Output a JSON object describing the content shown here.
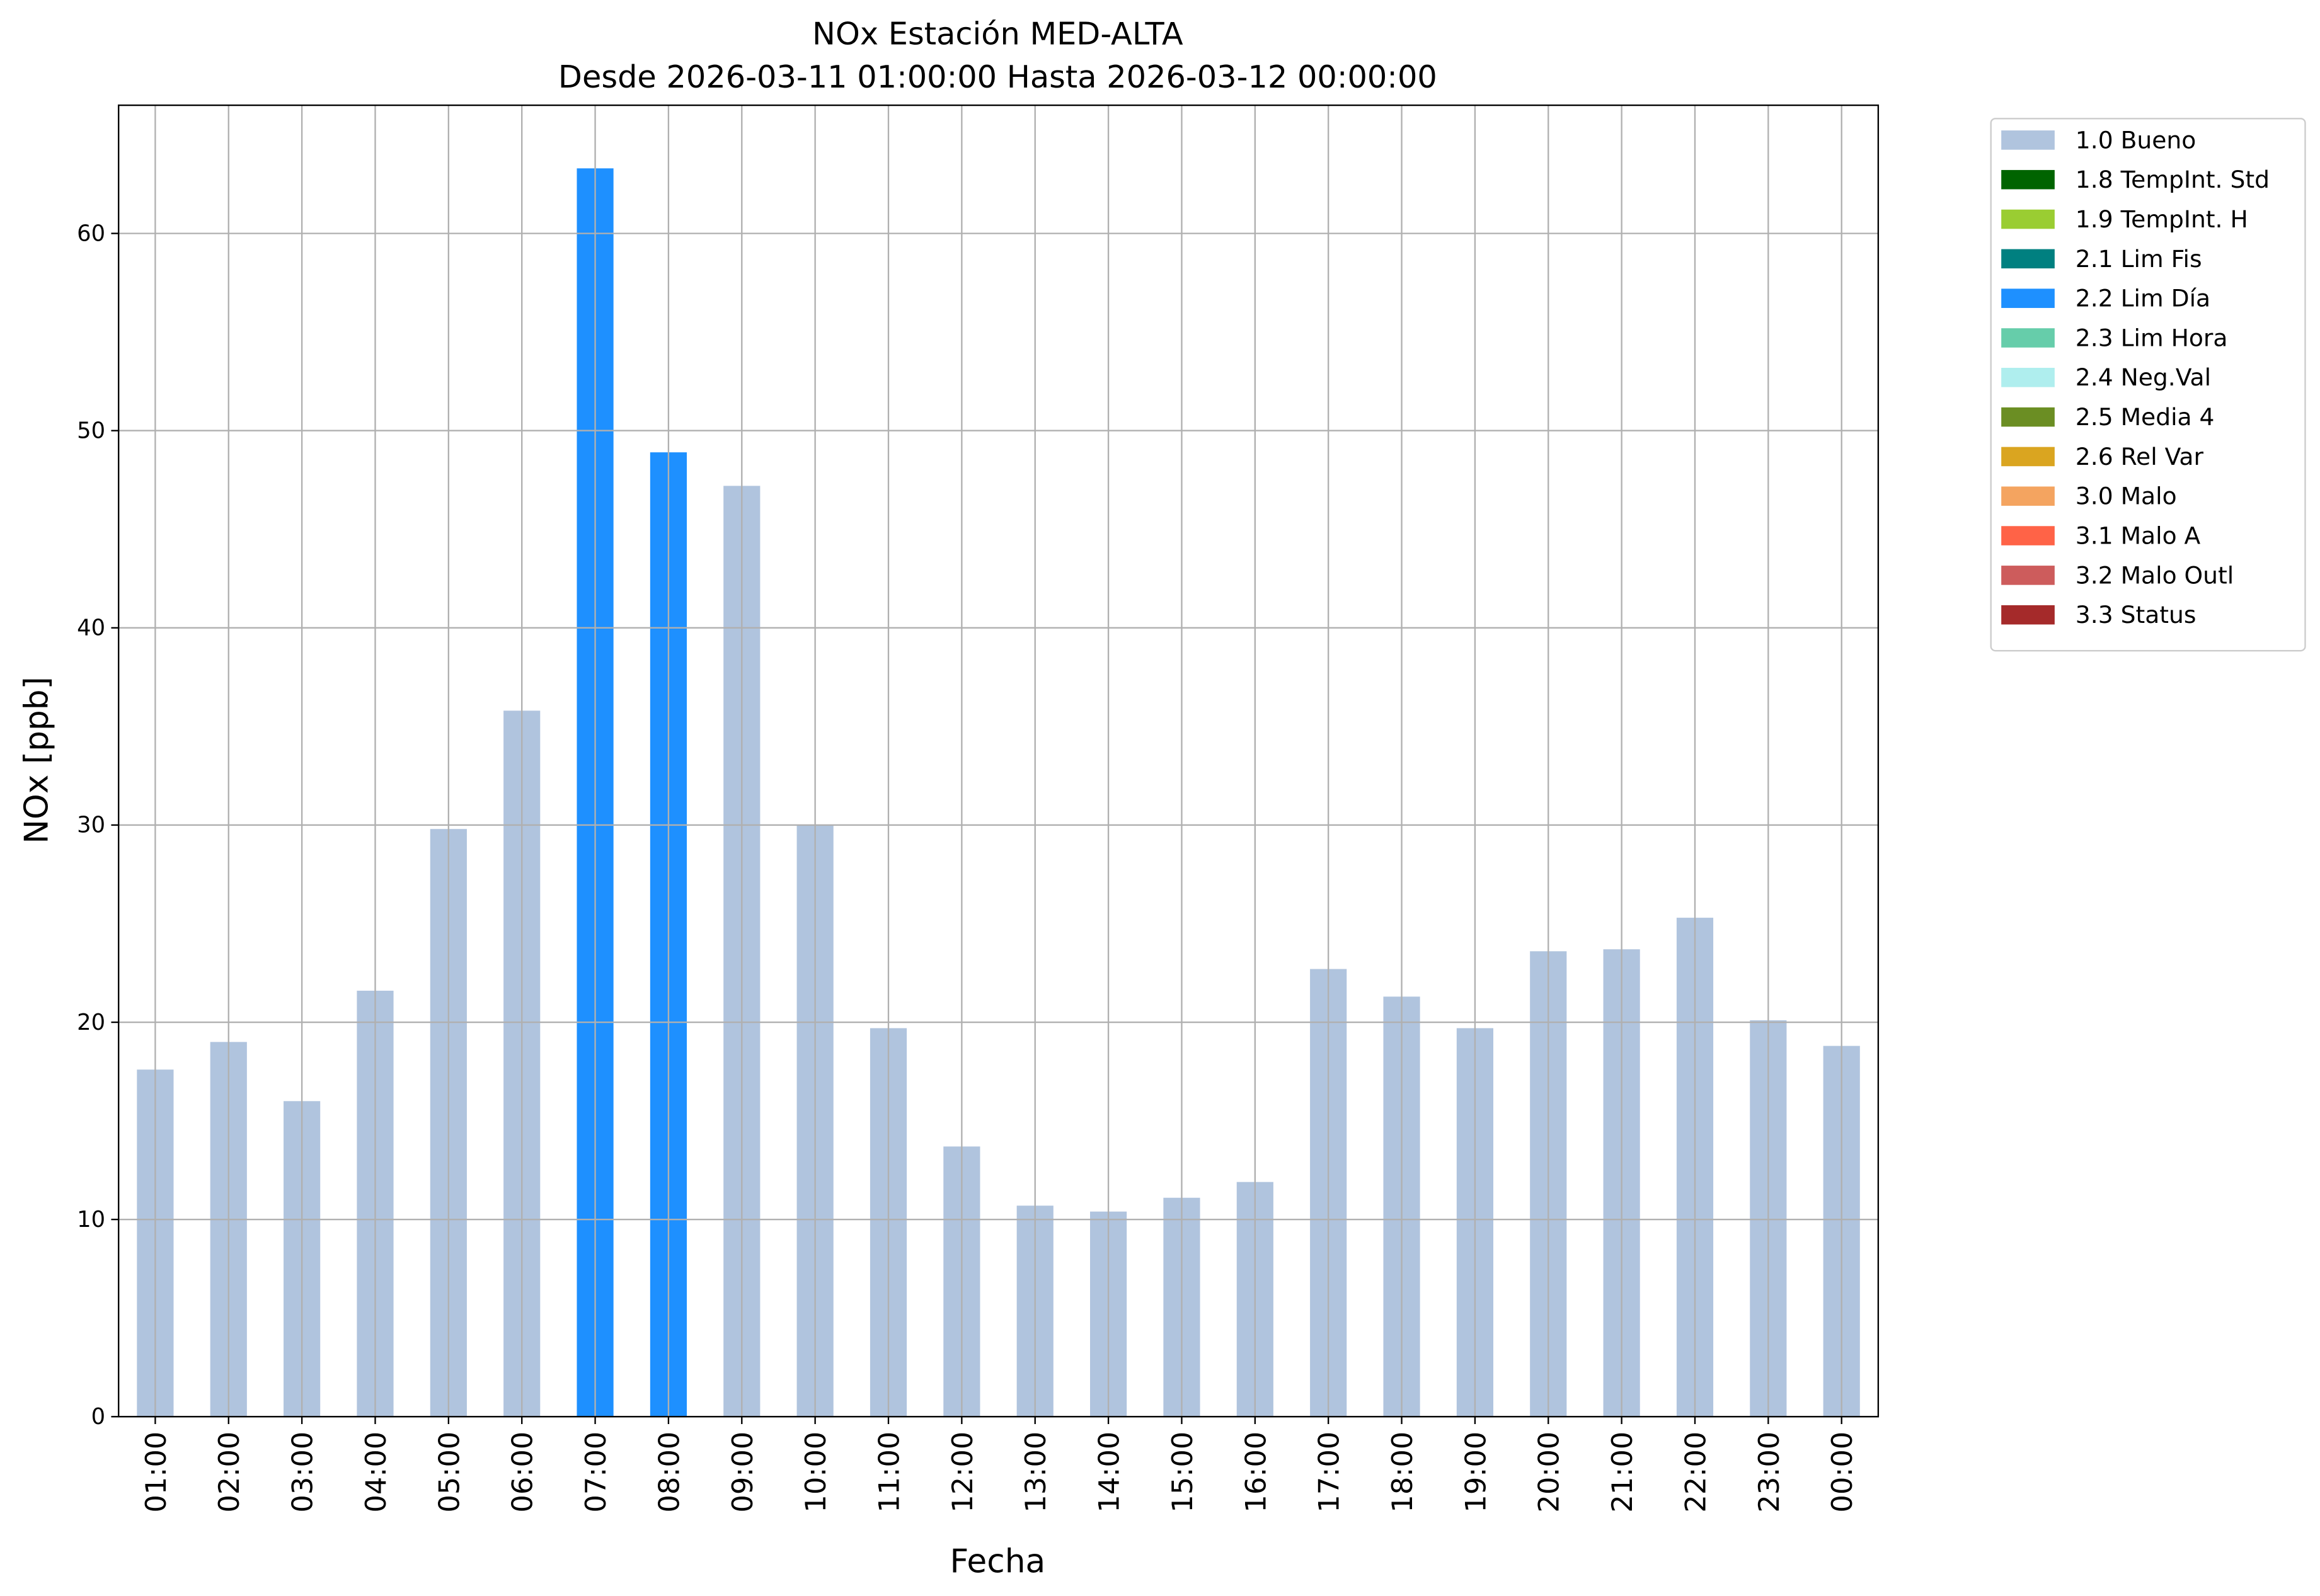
{
  "chart_data": {
    "type": "stacked_bar",
    "title": "NOx Estación MED-ALTA",
    "subtitle": "Desde 2026-03-11 01:00:00 Hasta 2026-03-12 00:00:00",
    "x_label": "Fecha",
    "y_label": "NOx [ppb]",
    "categories": [
      "01:00",
      "02:00",
      "03:00",
      "04:00",
      "05:00",
      "06:00",
      "07:00",
      "08:00",
      "09:00",
      "10:00",
      "11:00",
      "12:00",
      "13:00",
      "14:00",
      "15:00",
      "16:00",
      "17:00",
      "18:00",
      "19:00",
      "20:00",
      "21:00",
      "22:00",
      "23:00",
      "00:00"
    ],
    "series": [
      {
        "name": "1.0 Bueno",
        "color": "#b0c4de",
        "values": [
          17.6,
          19.0,
          16.0,
          21.6,
          29.8,
          35.8,
          null,
          null,
          47.2,
          30.0,
          19.7,
          13.7,
          10.7,
          10.4,
          11.1,
          11.9,
          22.7,
          21.3,
          19.7,
          23.6,
          23.7,
          25.3,
          20.1,
          18.8
        ]
      },
      {
        "name": "1.8 TempInt. Std",
        "color": "#006400",
        "values": [
          null,
          null,
          null,
          null,
          null,
          null,
          null,
          null,
          null,
          null,
          null,
          null,
          null,
          null,
          null,
          null,
          null,
          null,
          null,
          null,
          null,
          null,
          null,
          null
        ]
      },
      {
        "name": "1.9 TempInt. H",
        "color": "#9acd32",
        "values": [
          null,
          null,
          null,
          null,
          null,
          null,
          null,
          null,
          null,
          null,
          null,
          null,
          null,
          null,
          null,
          null,
          null,
          null,
          null,
          null,
          null,
          null,
          null,
          null
        ]
      },
      {
        "name": "2.1 Lim Fis",
        "color": "#008080",
        "values": [
          null,
          null,
          null,
          null,
          null,
          null,
          null,
          null,
          null,
          null,
          null,
          null,
          null,
          null,
          null,
          null,
          null,
          null,
          null,
          null,
          null,
          null,
          null,
          null
        ]
      },
      {
        "name": "2.2 Lim Día",
        "color": "#1e90ff",
        "values": [
          null,
          null,
          null,
          null,
          null,
          null,
          63.3,
          48.9,
          null,
          null,
          null,
          null,
          null,
          null,
          null,
          null,
          null,
          null,
          null,
          null,
          null,
          null,
          null,
          null
        ]
      },
      {
        "name": "2.3 Lim Hora",
        "color": "#66cdaa",
        "values": [
          null,
          null,
          null,
          null,
          null,
          null,
          null,
          null,
          null,
          null,
          null,
          null,
          null,
          null,
          null,
          null,
          null,
          null,
          null,
          null,
          null,
          null,
          null,
          null
        ]
      },
      {
        "name": "2.4 Neg.Val",
        "color": "#afeeee",
        "values": [
          null,
          null,
          null,
          null,
          null,
          null,
          null,
          null,
          null,
          null,
          null,
          null,
          null,
          null,
          null,
          null,
          null,
          null,
          null,
          null,
          null,
          null,
          null,
          null
        ]
      },
      {
        "name": "2.5 Media 4",
        "color": "#6b8e23",
        "values": [
          null,
          null,
          null,
          null,
          null,
          null,
          null,
          null,
          null,
          null,
          null,
          null,
          null,
          null,
          null,
          null,
          null,
          null,
          null,
          null,
          null,
          null,
          null,
          null
        ]
      },
      {
        "name": "2.6 Rel Var",
        "color": "#daa520",
        "values": [
          null,
          null,
          null,
          null,
          null,
          null,
          null,
          null,
          null,
          null,
          null,
          null,
          null,
          null,
          null,
          null,
          null,
          null,
          null,
          null,
          null,
          null,
          null,
          null
        ]
      },
      {
        "name": "3.0 Malo",
        "color": "#f4a460",
        "values": [
          null,
          null,
          null,
          null,
          null,
          null,
          null,
          null,
          null,
          null,
          null,
          null,
          null,
          null,
          null,
          null,
          null,
          null,
          null,
          null,
          null,
          null,
          null,
          null
        ]
      },
      {
        "name": "3.1 Malo A",
        "color": "#ff6347",
        "values": [
          null,
          null,
          null,
          null,
          null,
          null,
          null,
          null,
          null,
          null,
          null,
          null,
          null,
          null,
          null,
          null,
          null,
          null,
          null,
          null,
          null,
          null,
          null,
          null
        ]
      },
      {
        "name": "3.2 Malo Outl",
        "color": "#cd5c5c",
        "values": [
          null,
          null,
          null,
          null,
          null,
          null,
          null,
          null,
          null,
          null,
          null,
          null,
          null,
          null,
          null,
          null,
          null,
          null,
          null,
          null,
          null,
          null,
          null,
          null
        ]
      },
      {
        "name": "3.3 Status",
        "color": "#a52a2a",
        "values": [
          null,
          null,
          null,
          null,
          null,
          null,
          null,
          null,
          null,
          null,
          null,
          null,
          null,
          null,
          null,
          null,
          null,
          null,
          null,
          null,
          null,
          null,
          null,
          null
        ]
      }
    ],
    "ylim": [
      0,
      66.5
    ],
    "yticks": [
      0,
      10,
      20,
      30,
      40,
      50,
      60
    ],
    "grid": true,
    "legend": "outside-right"
  }
}
